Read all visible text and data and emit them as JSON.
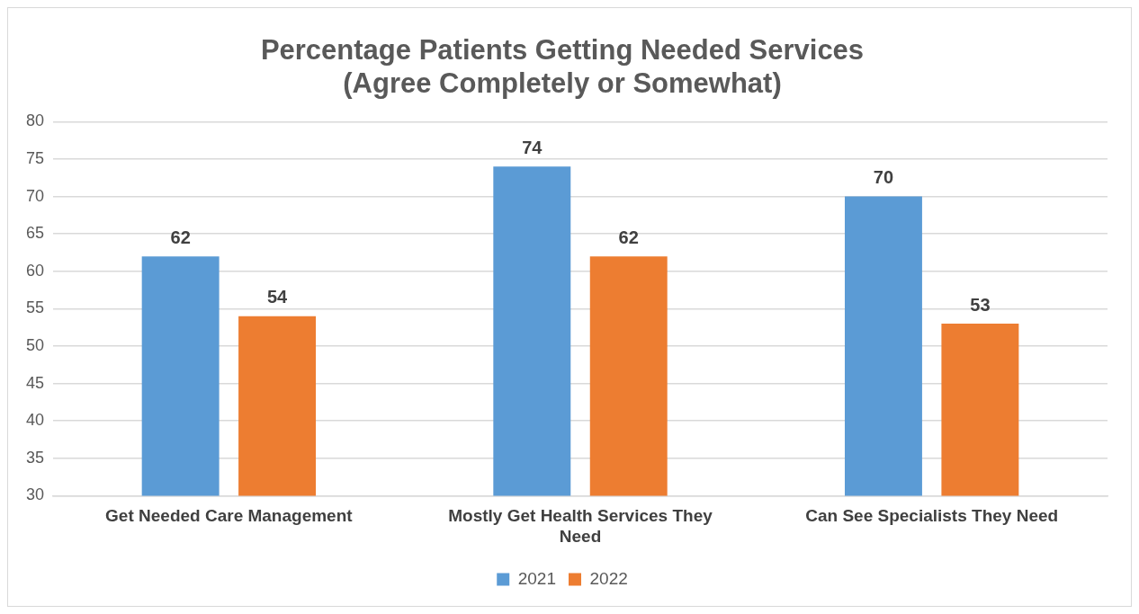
{
  "chart_data": {
    "type": "bar",
    "title": "Percentage Patients Getting Needed Services (Agree Completely or Somewhat)",
    "categories": [
      "Get Needed Care Management",
      "Mostly Get Health Services They Need",
      "Can See Specialists They Need"
    ],
    "series": [
      {
        "name": "2021",
        "color": "#5b9bd5",
        "values": [
          62,
          74,
          70
        ]
      },
      {
        "name": "2022",
        "color": "#ed7d31",
        "values": [
          54,
          62,
          53
        ]
      }
    ],
    "ylim": [
      30,
      80
    ],
    "yticks": [
      30,
      35,
      40,
      45,
      50,
      55,
      60,
      65,
      70,
      75,
      80
    ],
    "grid": "y",
    "legend": "bottom",
    "data_labels": true
  }
}
